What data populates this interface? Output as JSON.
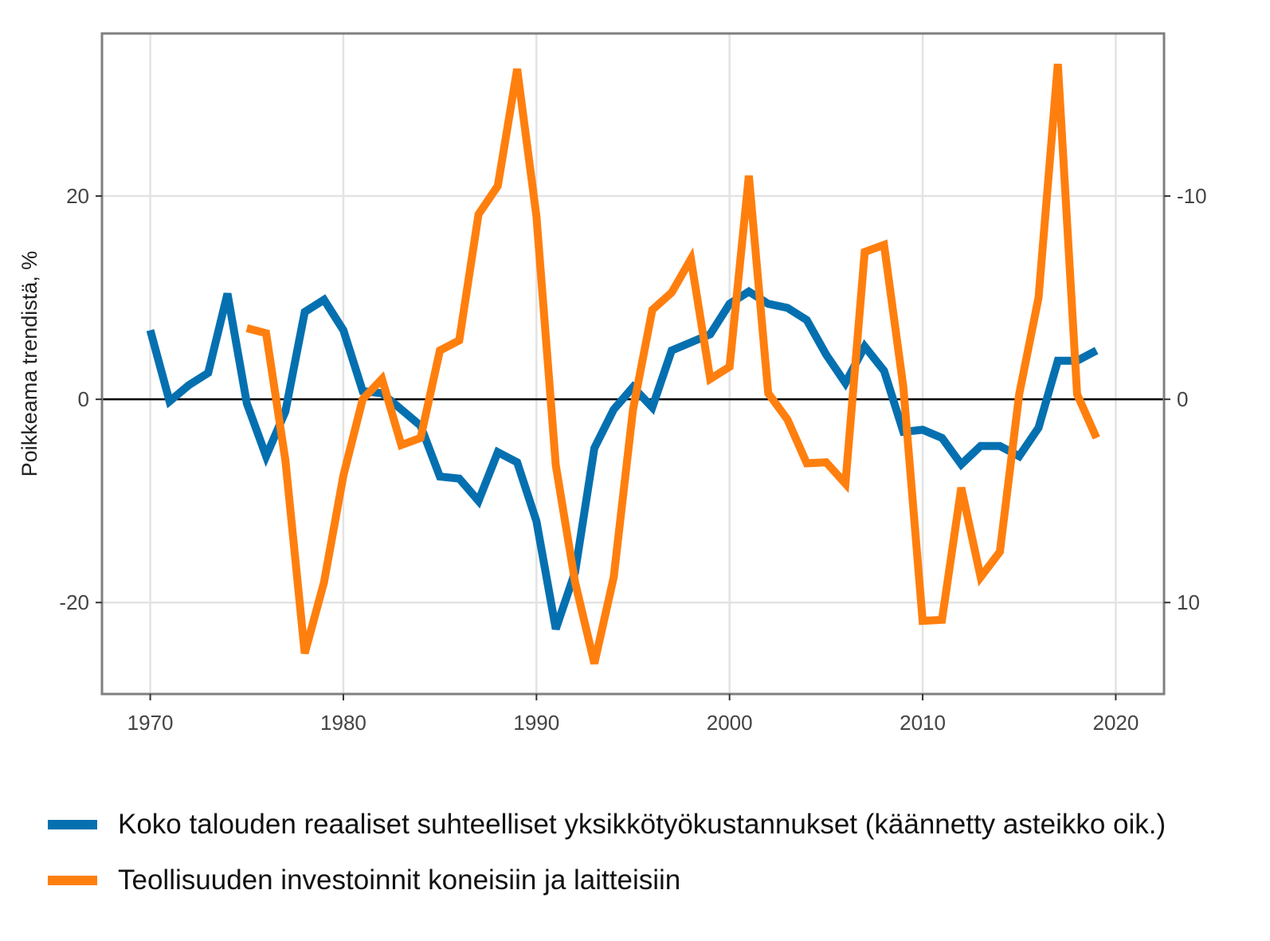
{
  "chart_data": {
    "type": "line",
    "title": "",
    "xlabel": "",
    "ylabel": "Poikkeama trendistä, %",
    "xlim": [
      1967.5,
      2022.5
    ],
    "ylim": [
      -29,
      36
    ],
    "x_ticks": [
      1970,
      1980,
      1990,
      2000,
      2010,
      2020
    ],
    "y_ticks_left": [
      -20,
      0,
      20
    ],
    "y_ticks_right": [
      -10,
      0,
      10
    ],
    "right_axis": {
      "reversed": true,
      "scale_factor": 0.5
    },
    "grid": true,
    "zero_line": true,
    "legend_position": "bottom",
    "series": [
      {
        "name": "Koko talouden reaaliset suhteelliset yksikkötyökustannukset (käännetty asteikko oik.)",
        "axis": "right",
        "color": "#0570b0",
        "x": [
          1970,
          1971,
          1972,
          1973,
          1974,
          1975,
          1976,
          1977,
          1978,
          1979,
          1980,
          1981,
          1982,
          1983,
          1984,
          1985,
          1986,
          1987,
          1988,
          1989,
          1990,
          1991,
          1992,
          1993,
          1994,
          1995,
          1996,
          1997,
          1998,
          1999,
          2000,
          2001,
          2002,
          2003,
          2004,
          2005,
          2006,
          2007,
          2008,
          2009,
          2010,
          2011,
          2012,
          2013,
          2014,
          2015,
          2016,
          2017,
          2018,
          2019
        ],
        "values": [
          -3.4,
          0.1,
          -0.7,
          -1.3,
          -5.2,
          0.2,
          2.8,
          0.6,
          -4.3,
          -4.9,
          -3.4,
          -0.4,
          -0.3,
          0.5,
          1.3,
          3.8,
          3.9,
          5.0,
          2.6,
          3.1,
          6.0,
          11.3,
          8.5,
          2.4,
          0.5,
          -0.6,
          0.4,
          -2.4,
          -2.8,
          -3.2,
          -4.7,
          -5.3,
          -4.7,
          -4.5,
          -3.9,
          -2.2,
          -0.8,
          -2.6,
          -1.4,
          1.6,
          1.5,
          1.9,
          3.2,
          2.3,
          2.3,
          2.8,
          1.4,
          -1.9,
          -1.9,
          -2.4
        ]
      },
      {
        "name": "Teollisuuden investoinnit koneisiin ja laitteisiin",
        "axis": "left",
        "color": "#ff7f0e",
        "x": [
          1975,
          1976,
          1977,
          1978,
          1979,
          1980,
          1981,
          1982,
          1983,
          1984,
          1985,
          1986,
          1987,
          1988,
          1989,
          1990,
          1991,
          1992,
          1993,
          1994,
          1995,
          1996,
          1997,
          1998,
          1999,
          2000,
          2001,
          2002,
          2003,
          2004,
          2005,
          2006,
          2007,
          2008,
          2009,
          2010,
          2011,
          2012,
          2013,
          2014,
          2015,
          2016,
          2017,
          2018,
          2019
        ],
        "values": [
          7.0,
          6.5,
          -6.0,
          -25.0,
          -18.0,
          -7.5,
          0.0,
          2.0,
          -4.5,
          -3.8,
          4.8,
          5.8,
          18.2,
          21.0,
          32.5,
          18.0,
          -6.5,
          -18.0,
          -26.0,
          -17.5,
          -1.0,
          8.8,
          10.5,
          13.8,
          2.0,
          3.2,
          22.0,
          0.6,
          -2.0,
          -6.3,
          -6.2,
          -8.3,
          14.5,
          15.2,
          1.2,
          -21.8,
          -21.7,
          -8.7,
          -17.5,
          -15.0,
          0.5,
          10.0,
          33.0,
          0.5,
          -3.8
        ]
      }
    ]
  }
}
